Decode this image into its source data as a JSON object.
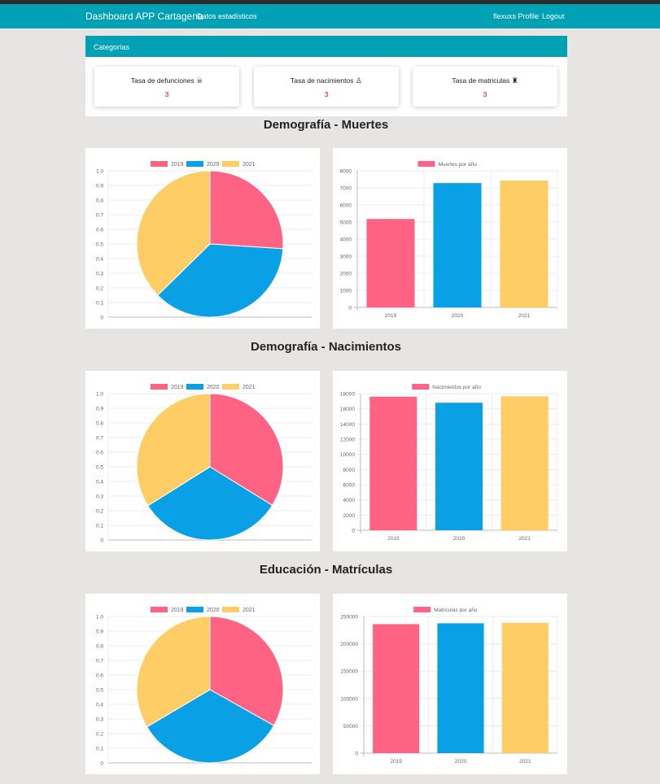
{
  "navbar": {
    "brand": "Dashboard APP Cartagena",
    "stats_link": "Datos estadísticos",
    "profile_link": "flexuxs Profile",
    "logout_link": "Logout"
  },
  "categories": {
    "header": "Categorías",
    "cards": [
      {
        "title": "Tasa de defunciones",
        "icon": "skull-crossbones-icon",
        "glyph": "☠",
        "value": "3"
      },
      {
        "title": "Tasa de nacimientos",
        "icon": "baby-icon",
        "glyph": "♙",
        "value": "3"
      },
      {
        "title": "Tasa de matriculas",
        "icon": "graduate-icon",
        "glyph": "♜",
        "value": "3"
      }
    ]
  },
  "colors": {
    "c2019": "#ff6384",
    "c2020": "#0aa0e6",
    "c2021": "#ffcd66"
  },
  "sections": [
    {
      "title": "Demografía - Muertes"
    },
    {
      "title": "Demografía - Nacimientos"
    },
    {
      "title": "Educación - Matrículas"
    }
  ],
  "chart_data": [
    {
      "type": "pie",
      "legend": [
        "2019",
        "2020",
        "2021"
      ],
      "values": [
        5180,
        7280,
        7430
      ],
      "yticks": [
        "0",
        "0.1",
        "0.2",
        "0.3",
        "0.4",
        "0.5",
        "0.6",
        "0.7",
        "0.8",
        "0.9",
        "1.0"
      ],
      "legend_position": "top"
    },
    {
      "type": "bar",
      "series_name": "Muertes por año",
      "categories": [
        "2019",
        "2020",
        "2021"
      ],
      "values": [
        5180,
        7280,
        7430
      ],
      "ylim": [
        0,
        8000
      ],
      "yticks": [
        "0",
        "1000",
        "2000",
        "3000",
        "4000",
        "5000",
        "6000",
        "7000",
        "8000"
      ]
    },
    {
      "type": "pie",
      "legend": [
        "2019",
        "2020",
        "2021"
      ],
      "values": [
        17600,
        16800,
        17650
      ],
      "yticks": [
        "0",
        "0.1",
        "0.2",
        "0.3",
        "0.4",
        "0.5",
        "0.6",
        "0.7",
        "0.8",
        "0.9",
        "1.0"
      ],
      "legend_position": "top"
    },
    {
      "type": "bar",
      "series_name": "Nacimientos por año",
      "categories": [
        "2019",
        "2020",
        "2021"
      ],
      "values": [
        17600,
        16800,
        17650
      ],
      "ylim": [
        0,
        18000
      ],
      "yticks": [
        "0",
        "2000",
        "4000",
        "6000",
        "8000",
        "10000",
        "12000",
        "14000",
        "16000",
        "18000"
      ]
    },
    {
      "type": "pie",
      "legend": [
        "2019",
        "2020",
        "2021"
      ],
      "values": [
        236000,
        237500,
        238500
      ],
      "yticks": [
        "0",
        "0.1",
        "0.2",
        "0.3",
        "0.4",
        "0.5",
        "0.6",
        "0.7",
        "0.8",
        "0.9",
        "1.0"
      ],
      "legend_position": "top"
    },
    {
      "type": "bar",
      "series_name": "Matriculas por año",
      "categories": [
        "2019",
        "2020",
        "2021"
      ],
      "values": [
        236000,
        237500,
        238500
      ],
      "ylim": [
        0,
        250000
      ],
      "yticks": [
        "0",
        "50000",
        "100000",
        "150000",
        "200000",
        "250000"
      ]
    }
  ]
}
